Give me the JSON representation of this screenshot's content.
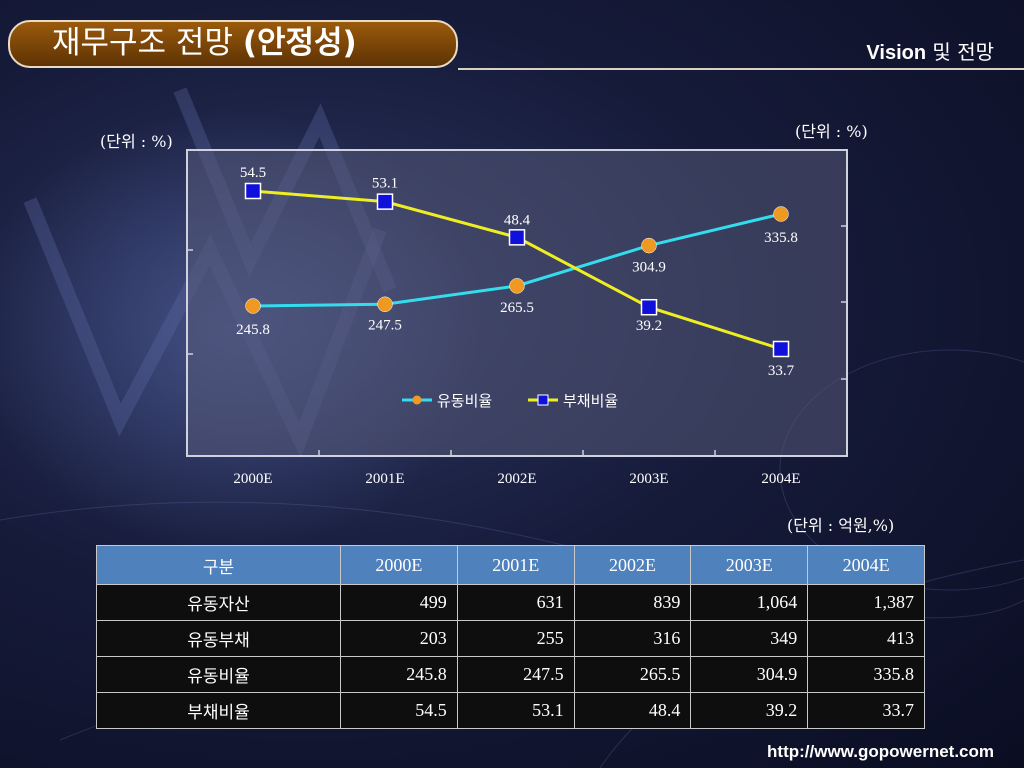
{
  "header": {
    "title_main": "재무구조 전망 ",
    "title_paren": "(안정성)",
    "section_en": "Vision",
    "section_ko": " 및 전망"
  },
  "chart_data": {
    "type": "line",
    "categories": [
      "2000E",
      "2001E",
      "2002E",
      "2003E",
      "2004E"
    ],
    "series": [
      {
        "name": "유동비율",
        "values": [
          245.8,
          247.5,
          265.5,
          304.9,
          335.8
        ],
        "color": "#33ddee",
        "marker": "circle",
        "marker_color": "#ee9922"
      },
      {
        "name": "부채비율",
        "values": [
          54.5,
          53.1,
          48.4,
          39.2,
          33.7
        ],
        "color": "#eeee22",
        "marker": "square",
        "marker_color": "#1010dd"
      }
    ],
    "units": {
      "left": "(단위 : %)",
      "right": "(단위 : %)"
    },
    "legend": "bottom-center"
  },
  "table": {
    "unit": "(단위 : 억원,%)",
    "columns": [
      "구분",
      "2000E",
      "2001E",
      "2002E",
      "2003E",
      "2004E"
    ],
    "rows": [
      {
        "label": "유동자산",
        "cells": [
          "499",
          "631",
          "839",
          "1,064",
          "1,387"
        ]
      },
      {
        "label": "유동부채",
        "cells": [
          "203",
          "255",
          "316",
          "349",
          "413"
        ]
      },
      {
        "label": "유동비율",
        "cells": [
          "245.8",
          "247.5",
          "265.5",
          "304.9",
          "335.8"
        ]
      },
      {
        "label": "부채비율",
        "cells": [
          "54.5",
          "53.1",
          "48.4",
          "39.2",
          "33.7"
        ]
      }
    ]
  },
  "footer": {
    "url": "http://www.gopowernet.com"
  }
}
